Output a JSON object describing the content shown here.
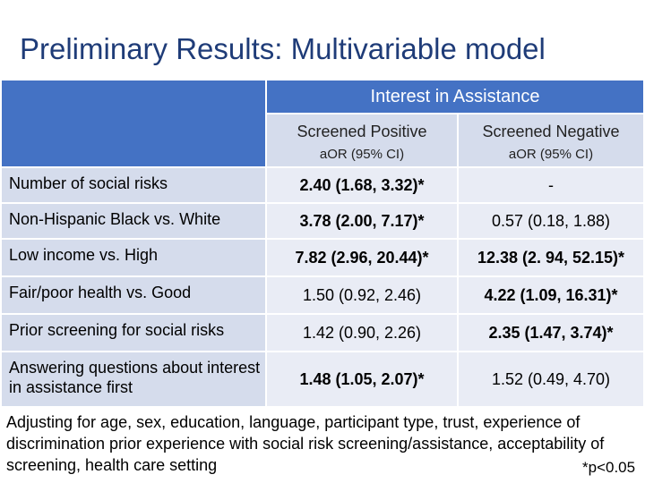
{
  "title": "Preliminary Results: Multivariable model",
  "table": {
    "group_header": "Interest in Assistance",
    "columns": [
      {
        "title": "Screened Positive",
        "subtitle": "aOR (95% CI)"
      },
      {
        "title": "Screened Negative",
        "subtitle": "aOR (95% CI)"
      }
    ],
    "rows": [
      {
        "label": "Number of social risks",
        "pos": "2.40 (1.68, 3.32)*",
        "pos_sig": true,
        "neg": "-",
        "neg_sig": false
      },
      {
        "label": "Non-Hispanic Black vs. White",
        "pos": "3.78 (2.00, 7.17)*",
        "pos_sig": true,
        "neg": "0.57 (0.18, 1.88)",
        "neg_sig": false
      },
      {
        "label": "Low income vs. High",
        "pos": "7.82 (2.96, 20.44)*",
        "pos_sig": true,
        "neg": "12.38 (2. 94, 52.15)*",
        "neg_sig": true
      },
      {
        "label": "Fair/poor health vs. Good",
        "pos": "1.50 (0.92, 2.46)",
        "pos_sig": false,
        "neg": "4.22 (1.09, 16.31)*",
        "neg_sig": true
      },
      {
        "label": "Prior screening for social risks",
        "pos": "1.42 (0.90, 2.26)",
        "pos_sig": false,
        "neg": "2.35 (1.47, 3.74)*",
        "neg_sig": true
      },
      {
        "label": "Answering questions about interest in assistance first",
        "pos": "1.48 (1.05, 2.07)*",
        "pos_sig": true,
        "neg": "1.52 (0.49, 4.70)",
        "neg_sig": false
      }
    ]
  },
  "footer": "Adjusting for age, sex, education, language, participant type, trust, experience of discrimination prior experience with social risk screening/assistance, acceptability of screening, health care setting",
  "footnote": "*p<0.05",
  "colors": {
    "header_blue": "#4472c4",
    "title_blue": "#1f3c78",
    "band_dark": "#d5dcec",
    "band_light": "#e9ecf5"
  }
}
